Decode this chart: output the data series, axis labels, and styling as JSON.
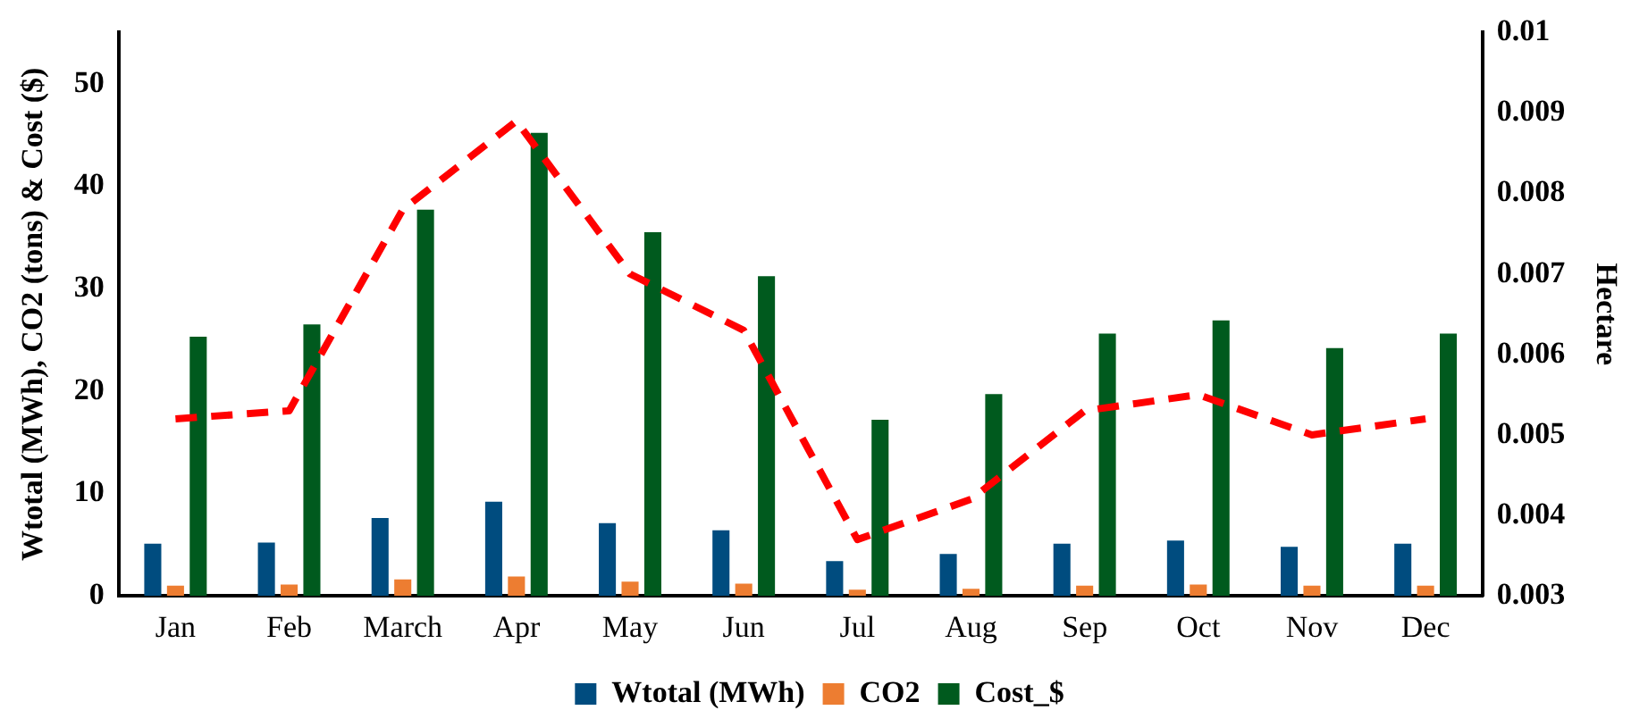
{
  "chart_data": {
    "type": "bar",
    "ylabel": "Wtotal (MWh), CO2 (tons) & Cost ($)",
    "y2label": "Hectare",
    "categories": [
      "Jan",
      "Feb",
      "March",
      "Apr",
      "May",
      "Jun",
      "Jul",
      "Aug",
      "Sep",
      "Oct",
      "Nov",
      "Dec"
    ],
    "series": [
      {
        "name": "Wtotal (MWh)",
        "color": "#004c7f",
        "values": [
          5.1,
          5.2,
          7.6,
          9.2,
          7.1,
          6.4,
          3.4,
          4.1,
          5.1,
          5.4,
          4.8,
          5.1
        ]
      },
      {
        "name": "CO2",
        "color": "#ed7d31",
        "values": [
          1.0,
          1.1,
          1.6,
          1.9,
          1.4,
          1.2,
          0.6,
          0.7,
          1.0,
          1.1,
          1.0,
          1.0
        ]
      },
      {
        "name": "Cost_$",
        "color": "#005a1e",
        "values": [
          25.3,
          26.5,
          37.7,
          45.2,
          35.5,
          31.2,
          17.2,
          19.7,
          25.6,
          26.9,
          24.2,
          25.6
        ]
      },
      {
        "type": "line",
        "axis": "y2",
        "color": "#ff0000",
        "line_style": "dashed",
        "marker": "none",
        "values": [
          0.0052,
          0.0053,
          0.0078,
          0.0089,
          0.007,
          0.0063,
          0.0037,
          0.0042,
          0.0053,
          0.0055,
          0.005,
          0.0052
        ]
      }
    ],
    "ylim": [
      0,
      55
    ],
    "yticks": [
      0,
      10,
      20,
      30,
      40,
      50
    ],
    "y2lim": [
      0.003,
      0.01
    ],
    "y2ticks": [
      0.003,
      0.004,
      0.005,
      0.006,
      0.007,
      0.008,
      0.009,
      0.01
    ],
    "grid": false,
    "legend": "bottom"
  }
}
